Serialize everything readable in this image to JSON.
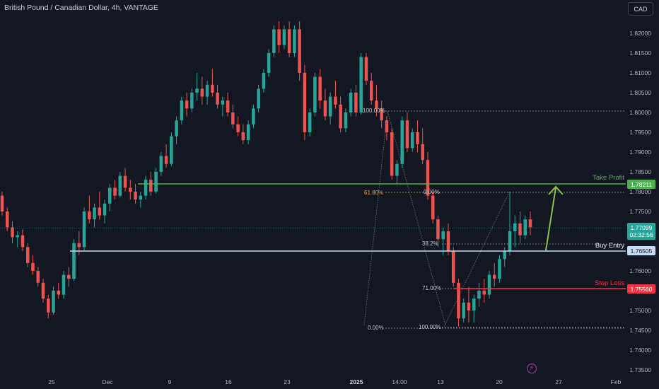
{
  "header": {
    "title": "British Pound / Canadian Dollar, 4h, VANTAGE",
    "currency_button": "CAD"
  },
  "colors": {
    "background": "#131722",
    "up": "#26a69a",
    "down": "#ef5350",
    "take_profit": "#4caf50",
    "buy_entry": "#c6dbf2",
    "stop_loss": "#f23645",
    "fib": "#9598a1",
    "fib_618": "#f0a04b",
    "arrow": "#8bc34a"
  },
  "chart_data": {
    "type": "candlestick",
    "symbol": "GBPCAD",
    "timeframe": "4h",
    "y_axis": {
      "ticks": [
        "1.82000",
        "1.81500",
        "1.81000",
        "1.80500",
        "1.80000",
        "1.79500",
        "1.79000",
        "1.78500",
        "1.78000",
        "1.77500",
        "1.77000",
        "1.76500",
        "1.76000",
        "1.75500",
        "1.75000",
        "1.74500",
        "1.74000",
        "1.73500"
      ],
      "range": [
        1.733,
        1.824
      ]
    },
    "x_axis": {
      "ticks": [
        "25",
        "Dec",
        "9",
        "16",
        "23",
        "2025",
        "14:00",
        "13",
        "20",
        "27",
        "Feb"
      ]
    },
    "last_price": "1.77099",
    "countdown": "02:32:56",
    "levels": [
      {
        "name": "Take Profit",
        "label": "Take Profit",
        "price": "1.78211"
      },
      {
        "name": "Buy Entry",
        "label": "Buy Entry",
        "price": "1.76505"
      },
      {
        "name": "Stop Loss",
        "label": "Stop Loss",
        "price": "1.75560"
      }
    ],
    "fib_labels_left": [
      {
        "label": "100.00%",
        "price": 1.8002
      },
      {
        "label": "61.80%",
        "price": 1.7797
      },
      {
        "label": "0.00%",
        "price": 1.7457
      }
    ],
    "fib_labels_right": [
      {
        "label": "0.00%",
        "price": 1.7797
      },
      {
        "label": "38.2%",
        "price": 1.767
      },
      {
        "label": "71.00%",
        "price": 1.756
      },
      {
        "label": "100.00%",
        "price": 1.7457
      }
    ],
    "candles": [
      [
        1.779,
        1.78,
        1.774,
        1.775
      ],
      [
        1.775,
        1.776,
        1.77,
        1.771
      ],
      [
        1.771,
        1.7725,
        1.767,
        1.7685
      ],
      [
        1.7685,
        1.77,
        1.766,
        1.769
      ],
      [
        1.769,
        1.7705,
        1.765,
        1.766
      ],
      [
        1.766,
        1.767,
        1.761,
        1.762
      ],
      [
        1.762,
        1.764,
        1.759,
        1.76
      ],
      [
        1.76,
        1.761,
        1.756,
        1.757
      ],
      [
        1.757,
        1.758,
        1.752,
        1.753
      ],
      [
        1.753,
        1.754,
        1.748,
        1.7495
      ],
      [
        1.7495,
        1.756,
        1.749,
        1.755
      ],
      [
        1.755,
        1.757,
        1.753,
        1.754
      ],
      [
        1.754,
        1.76,
        1.753,
        1.759
      ],
      [
        1.759,
        1.761,
        1.756,
        1.758
      ],
      [
        1.758,
        1.768,
        1.7575,
        1.767
      ],
      [
        1.767,
        1.77,
        1.764,
        1.766
      ],
      [
        1.766,
        1.776,
        1.765,
        1.775
      ],
      [
        1.775,
        1.779,
        1.772,
        1.773
      ],
      [
        1.773,
        1.777,
        1.771,
        1.776
      ],
      [
        1.776,
        1.78,
        1.773,
        1.774
      ],
      [
        1.774,
        1.778,
        1.772,
        1.777
      ],
      [
        1.777,
        1.782,
        1.775,
        1.781
      ],
      [
        1.781,
        1.783,
        1.778,
        1.779
      ],
      [
        1.779,
        1.785,
        1.7785,
        1.784
      ],
      [
        1.784,
        1.786,
        1.78,
        1.781
      ],
      [
        1.781,
        1.783,
        1.778,
        1.78
      ],
      [
        1.78,
        1.782,
        1.777,
        1.778
      ],
      [
        1.778,
        1.78,
        1.776,
        1.779
      ],
      [
        1.779,
        1.784,
        1.778,
        1.783
      ],
      [
        1.783,
        1.785,
        1.779,
        1.78
      ],
      [
        1.78,
        1.786,
        1.7795,
        1.785
      ],
      [
        1.785,
        1.79,
        1.784,
        1.789
      ],
      [
        1.789,
        1.792,
        1.786,
        1.787
      ],
      [
        1.787,
        1.795,
        1.7865,
        1.794
      ],
      [
        1.794,
        1.799,
        1.792,
        1.798
      ],
      [
        1.798,
        1.804,
        1.797,
        1.803
      ],
      [
        1.803,
        1.805,
        1.799,
        1.801
      ],
      [
        1.801,
        1.806,
        1.8,
        1.805
      ],
      [
        1.805,
        1.81,
        1.803,
        1.806
      ],
      [
        1.806,
        1.809,
        1.802,
        1.804
      ],
      [
        1.804,
        1.808,
        1.802,
        1.807
      ],
      [
        1.807,
        1.811,
        1.804,
        1.805
      ],
      [
        1.805,
        1.807,
        1.801,
        1.802
      ],
      [
        1.802,
        1.804,
        1.799,
        1.803
      ],
      [
        1.803,
        1.805,
        1.799,
        1.8
      ],
      [
        1.8,
        1.802,
        1.796,
        1.797
      ],
      [
        1.797,
        1.799,
        1.794,
        1.795
      ],
      [
        1.795,
        1.797,
        1.792,
        1.793
      ],
      [
        1.793,
        1.798,
        1.792,
        1.797
      ],
      [
        1.797,
        1.802,
        1.796,
        1.801
      ],
      [
        1.801,
        1.807,
        1.8,
        1.806
      ],
      [
        1.806,
        1.811,
        1.805,
        1.81
      ],
      [
        1.81,
        1.816,
        1.809,
        1.815
      ],
      [
        1.815,
        1.822,
        1.814,
        1.821
      ],
      [
        1.821,
        1.823,
        1.815,
        1.817
      ],
      [
        1.817,
        1.822,
        1.816,
        1.821
      ],
      [
        1.821,
        1.823,
        1.814,
        1.815
      ],
      [
        1.815,
        1.822,
        1.814,
        1.821
      ],
      [
        1.821,
        1.823,
        1.808,
        1.81
      ],
      [
        1.81,
        1.812,
        1.793,
        1.795
      ],
      [
        1.795,
        1.801,
        1.794,
        1.8
      ],
      [
        1.8,
        1.81,
        1.799,
        1.809
      ],
      [
        1.809,
        1.811,
        1.801,
        1.803
      ],
      [
        1.803,
        1.806,
        1.798,
        1.799
      ],
      [
        1.799,
        1.805,
        1.797,
        1.804
      ],
      [
        1.804,
        1.808,
        1.801,
        1.802
      ],
      [
        1.802,
        1.804,
        1.795,
        1.796
      ],
      [
        1.796,
        1.801,
        1.795,
        1.8
      ],
      [
        1.8,
        1.806,
        1.799,
        1.805
      ],
      [
        1.805,
        1.807,
        1.799,
        1.8
      ],
      [
        1.8,
        1.815,
        1.7995,
        1.814
      ],
      [
        1.814,
        1.815,
        1.807,
        1.808
      ],
      [
        1.808,
        1.81,
        1.802,
        1.803
      ],
      [
        1.803,
        1.807,
        1.799,
        1.801
      ],
      [
        1.801,
        1.803,
        1.796,
        1.798
      ],
      [
        1.798,
        1.799,
        1.793,
        1.795
      ],
      [
        1.795,
        1.796,
        1.783,
        1.784
      ],
      [
        1.784,
        1.788,
        1.782,
        1.787
      ],
      [
        1.787,
        1.799,
        1.786,
        1.798
      ],
      [
        1.798,
        1.8,
        1.79,
        1.791
      ],
      [
        1.791,
        1.796,
        1.79,
        1.795
      ],
      [
        1.795,
        1.798,
        1.79,
        1.792
      ],
      [
        1.792,
        1.796,
        1.787,
        1.788
      ],
      [
        1.788,
        1.79,
        1.778,
        1.779
      ],
      [
        1.779,
        1.78,
        1.772,
        1.773
      ],
      [
        1.773,
        1.774,
        1.766,
        1.768
      ],
      [
        1.768,
        1.771,
        1.764,
        1.77
      ],
      [
        1.77,
        1.772,
        1.764,
        1.765
      ],
      [
        1.765,
        1.766,
        1.756,
        1.757
      ],
      [
        1.757,
        1.758,
        1.746,
        1.748
      ],
      [
        1.748,
        1.753,
        1.747,
        1.752
      ],
      [
        1.752,
        1.756,
        1.747,
        1.75
      ],
      [
        1.75,
        1.754,
        1.747,
        1.753
      ],
      [
        1.753,
        1.757,
        1.751,
        1.755
      ],
      [
        1.755,
        1.758,
        1.752,
        1.754
      ],
      [
        1.754,
        1.76,
        1.753,
        1.759
      ],
      [
        1.759,
        1.762,
        1.756,
        1.758
      ],
      [
        1.758,
        1.764,
        1.757,
        1.763
      ],
      [
        1.763,
        1.766,
        1.761,
        1.765
      ],
      [
        1.765,
        1.78,
        1.764,
        1.77
      ],
      [
        1.77,
        1.774,
        1.766,
        1.772
      ],
      [
        1.772,
        1.775,
        1.767,
        1.769
      ],
      [
        1.769,
        1.774,
        1.768,
        1.773
      ],
      [
        1.773,
        1.775,
        1.769,
        1.771
      ]
    ]
  }
}
